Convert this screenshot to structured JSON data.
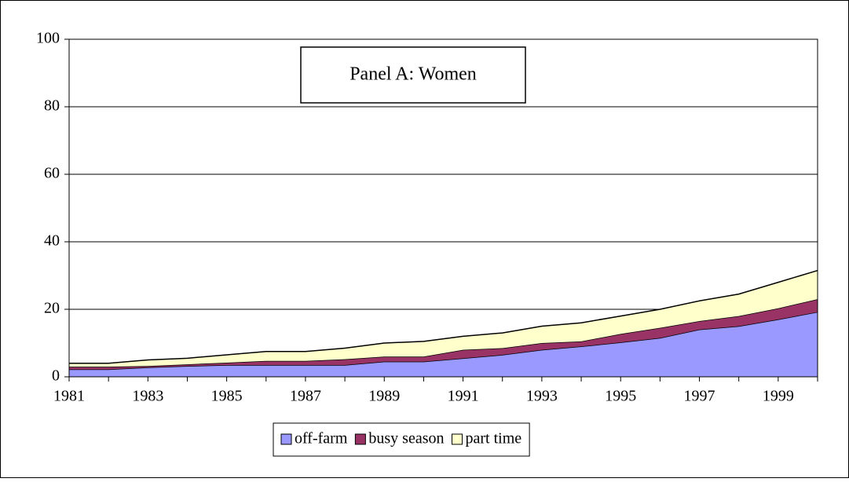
{
  "chart_data": {
    "type": "stacked_area",
    "annotation": "Panel A: Women",
    "x": [
      1981,
      1982,
      1983,
      1984,
      1985,
      1986,
      1987,
      1988,
      1989,
      1990,
      1991,
      1992,
      1993,
      1994,
      1995,
      1996,
      1997,
      1998,
      1999,
      2000
    ],
    "xlim": [
      1981,
      2000
    ],
    "xticks": [
      1981,
      1983,
      1985,
      1987,
      1989,
      1991,
      1993,
      1995,
      1997,
      1999
    ],
    "ylim": [
      0,
      100
    ],
    "yticks": [
      0,
      20,
      40,
      60,
      80,
      100
    ],
    "grid": true,
    "legend": "bottom",
    "series": [
      {
        "name": "off-farm",
        "color": "#9999ff",
        "values": [
          2.2,
          2.2,
          2.8,
          3.2,
          3.5,
          3.5,
          3.5,
          3.5,
          4.5,
          4.5,
          5.5,
          6.5,
          8,
          9,
          10.2,
          11.5,
          14,
          15,
          17,
          19.2
        ]
      },
      {
        "name": "busy season",
        "color": "#993366",
        "values": [
          0.8,
          0.8,
          0.4,
          0.5,
          0.7,
          1.2,
          1.2,
          1.7,
          1.5,
          1.5,
          2.5,
          2,
          2,
          1.5,
          2.5,
          3,
          2.5,
          3,
          3.3,
          3.8
        ]
      },
      {
        "name": "part time",
        "color": "#ffffcc",
        "values": [
          1,
          1,
          1.8,
          1.8,
          2.3,
          2.8,
          2.8,
          3.3,
          4,
          4.5,
          4,
          4.5,
          5,
          5.5,
          5.3,
          5.5,
          6,
          6.5,
          7.7,
          8.5
        ]
      }
    ]
  }
}
